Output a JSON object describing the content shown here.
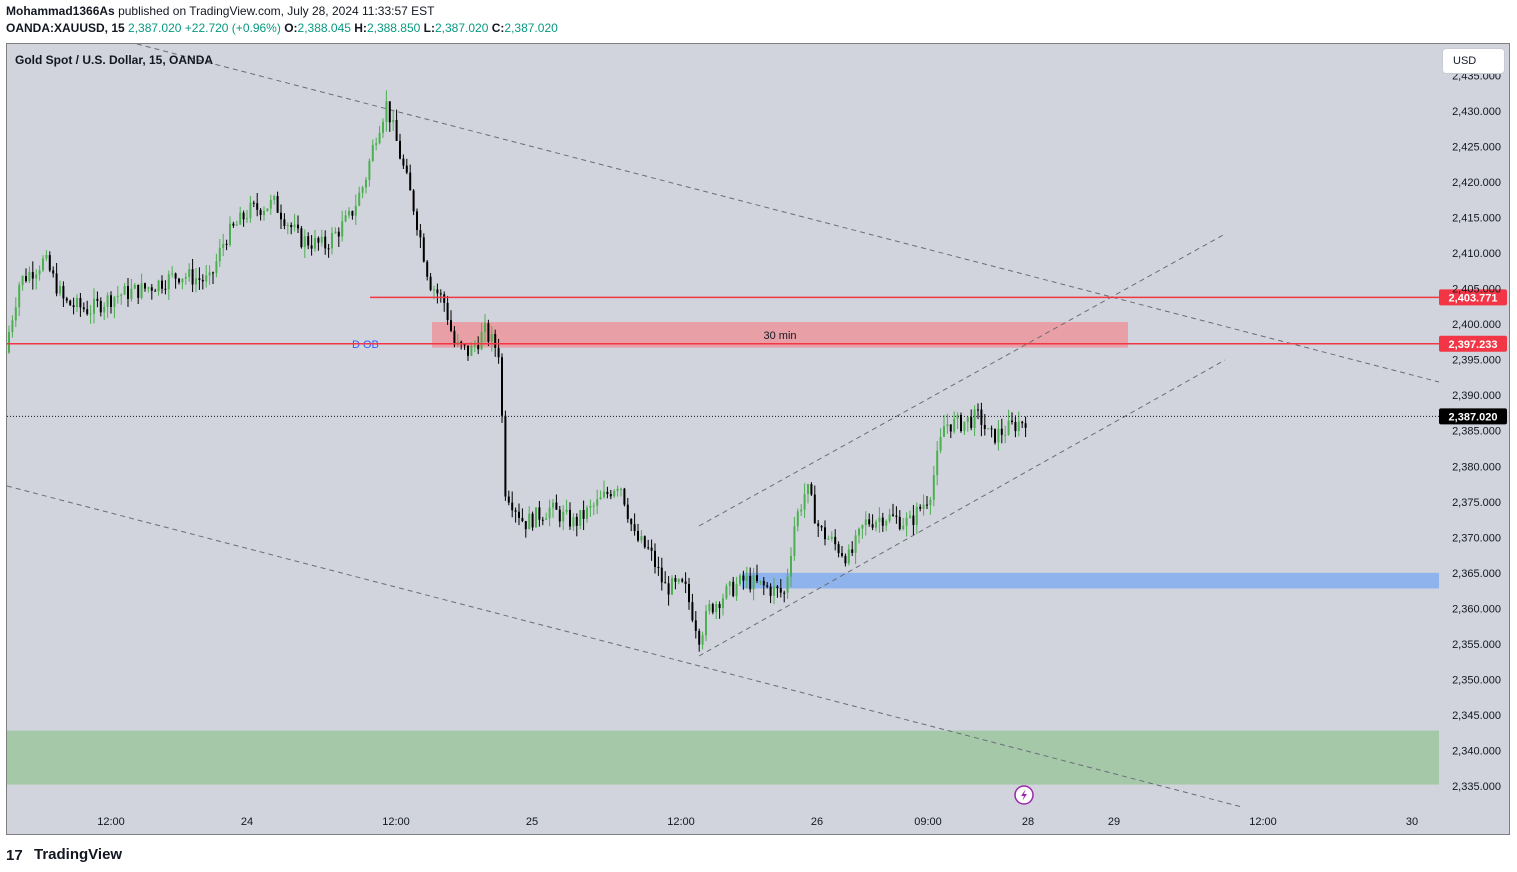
{
  "header": {
    "author": "Mohammad1366As",
    "published_text": "published on TradingView.com, July 28, 2024 11:33:57 EST",
    "symbol": "OANDA:XAUUSD, 15",
    "last": "2,387.020",
    "change": "+22.720 (+0.96%)",
    "o_label": "O:",
    "o_value": "2,388.045",
    "h_label": "H:",
    "h_value": "2,388.850",
    "l_label": "L:",
    "l_value": "2,387.020",
    "c_label": "C:",
    "c_value": "2,387.020"
  },
  "chart_title": "Gold Spot / U.S. Dollar, 15, OANDA",
  "currency_button": "USD",
  "footer": {
    "brand": "TradingView",
    "logo_glyph": "17"
  },
  "colors": {
    "background": "#d1d4dc",
    "up": "#4caf50",
    "down": "#000000",
    "resistance_line": "#f23645",
    "order_block": "#e8a0a6",
    "support_zone_blue": "#8fb3ec",
    "demand_zone_green": "#a5c9a8",
    "last_price_label": "#000000",
    "level_label": "#f23645",
    "dashed_line": "#6a6d78"
  },
  "chart_data": {
    "type": "candlestick",
    "title": "Gold Spot / U.S. Dollar, 15, OANDA",
    "y_axis": {
      "ticks": [
        "2,435.000",
        "2,430.000",
        "2,425.000",
        "2,420.000",
        "2,415.000",
        "2,410.000",
        "2,405.000",
        "2,400.000",
        "2,395.000",
        "2,390.000",
        "2,385.000",
        "2,380.000",
        "2,375.000",
        "2,370.000",
        "2,365.000",
        "2,360.000",
        "2,355.000",
        "2,350.000",
        "2,345.000",
        "2,340.000",
        "2,335.000"
      ],
      "range": [
        2333,
        2437
      ],
      "currency": "USD"
    },
    "x_axis": {
      "ticks": [
        "12:00",
        "24",
        "12:00",
        "25",
        "12:00",
        "26",
        "09:00",
        "28",
        "29",
        "12:00",
        "30"
      ]
    },
    "price_path": [
      [
        0,
        2396
      ],
      [
        15,
        2406
      ],
      [
        40,
        2409
      ],
      [
        60,
        2403
      ],
      [
        85,
        2402
      ],
      [
        110,
        2404
      ],
      [
        140,
        2405
      ],
      [
        175,
        2407
      ],
      [
        205,
        2406
      ],
      [
        220,
        2412
      ],
      [
        245,
        2416
      ],
      [
        270,
        2417
      ],
      [
        295,
        2412
      ],
      [
        320,
        2411
      ],
      [
        345,
        2415
      ],
      [
        360,
        2420
      ],
      [
        372,
        2427
      ],
      [
        382,
        2431
      ],
      [
        395,
        2424
      ],
      [
        410,
        2416
      ],
      [
        425,
        2406
      ],
      [
        440,
        2403
      ],
      [
        450,
        2397
      ],
      [
        465,
        2396
      ],
      [
        480,
        2399
      ],
      [
        495,
        2396
      ],
      [
        500,
        2377
      ],
      [
        520,
        2372
      ],
      [
        545,
        2374
      ],
      [
        570,
        2372
      ],
      [
        595,
        2375
      ],
      [
        615,
        2378
      ],
      [
        630,
        2370
      ],
      [
        645,
        2368
      ],
      [
        660,
        2363
      ],
      [
        680,
        2363
      ],
      [
        695,
        2356
      ],
      [
        705,
        2360
      ],
      [
        720,
        2362
      ],
      [
        740,
        2364
      ],
      [
        760,
        2363
      ],
      [
        780,
        2362
      ],
      [
        790,
        2372
      ],
      [
        802,
        2377
      ],
      [
        815,
        2371
      ],
      [
        830,
        2369
      ],
      [
        845,
        2367
      ],
      [
        860,
        2372
      ],
      [
        880,
        2373
      ],
      [
        905,
        2372
      ],
      [
        925,
        2376
      ],
      [
        940,
        2386
      ],
      [
        955,
        2386
      ],
      [
        975,
        2387
      ],
      [
        985,
        2384
      ],
      [
        1000,
        2385
      ],
      [
        1025,
        2387
      ]
    ],
    "levels": [
      {
        "price": 2403.771,
        "label": "2,403.771"
      },
      {
        "price": 2397.233,
        "label": "2,397.233"
      }
    ],
    "last_price": {
      "price": 2387.02,
      "label": "2,387.020"
    },
    "zones": [
      {
        "name": "daily order block",
        "label": "30 min",
        "from": 2396.7,
        "to": 2400.3
      },
      {
        "name": "support zone",
        "from": 2362.8,
        "to": 2365.0
      },
      {
        "name": "demand zone",
        "from": 2335.2,
        "to": 2342.8
      }
    ],
    "annotations": [
      {
        "text": "D OB",
        "price": 2397.2
      }
    ]
  }
}
